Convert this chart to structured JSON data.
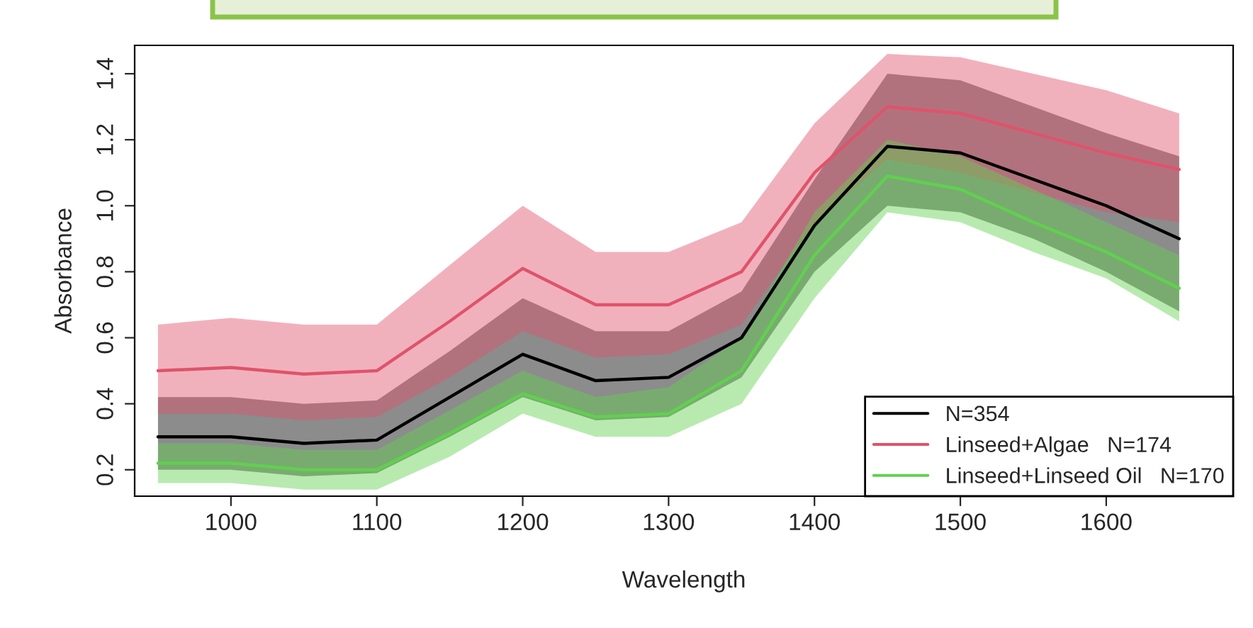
{
  "chart_data": {
    "type": "line",
    "xlabel": "Wavelength",
    "ylabel": "Absorbance",
    "x": [
      950,
      1000,
      1050,
      1100,
      1150,
      1200,
      1250,
      1300,
      1350,
      1400,
      1450,
      1500,
      1550,
      1600,
      1650
    ],
    "xlim": [
      934,
      1687
    ],
    "ylim": [
      0.12,
      1.486
    ],
    "xticks": [
      1000,
      1100,
      1200,
      1300,
      1400,
      1500,
      1600
    ],
    "yticks": [
      {
        "value": 0.2,
        "label": "0.2"
      },
      {
        "value": 0.4,
        "label": "0.4"
      },
      {
        "value": 0.6,
        "label": "0.6"
      },
      {
        "value": 0.8,
        "label": "0.8"
      },
      {
        "value": 1.0,
        "label": "1.0"
      },
      {
        "value": 1.2,
        "label": "1.2"
      },
      {
        "value": 1.4,
        "label": "1.4"
      }
    ],
    "series": [
      {
        "name": "N=354",
        "color": "#000000",
        "values": [
          0.3,
          0.3,
          0.28,
          0.29,
          0.42,
          0.55,
          0.47,
          0.48,
          0.6,
          0.94,
          1.18,
          1.16,
          1.08,
          1.0,
          0.9
        ],
        "lower": [
          0.2,
          0.2,
          0.18,
          0.19,
          0.3,
          0.42,
          0.35,
          0.36,
          0.48,
          0.8,
          1.0,
          0.98,
          0.9,
          0.8,
          0.68
        ],
        "upper": [
          0.42,
          0.42,
          0.4,
          0.41,
          0.56,
          0.72,
          0.62,
          0.62,
          0.74,
          1.08,
          1.4,
          1.38,
          1.3,
          1.22,
          1.15
        ]
      },
      {
        "name": "Linseed+Algae   N=174",
        "color": "#df536b",
        "values": [
          0.5,
          0.51,
          0.49,
          0.5,
          0.65,
          0.81,
          0.7,
          0.7,
          0.8,
          1.1,
          1.3,
          1.28,
          1.22,
          1.16,
          1.11
        ],
        "lower": [
          0.37,
          0.37,
          0.35,
          0.36,
          0.48,
          0.62,
          0.54,
          0.55,
          0.64,
          0.95,
          1.14,
          1.1,
          1.04,
          0.98,
          0.95
        ],
        "upper": [
          0.64,
          0.66,
          0.64,
          0.64,
          0.82,
          1.0,
          0.86,
          0.86,
          0.95,
          1.25,
          1.46,
          1.45,
          1.4,
          1.35,
          1.28
        ]
      },
      {
        "name": "Linseed+Linseed Oil   N=170",
        "color": "#61d04f",
        "values": [
          0.22,
          0.22,
          0.2,
          0.2,
          0.31,
          0.43,
          0.36,
          0.37,
          0.5,
          0.85,
          1.09,
          1.05,
          0.95,
          0.86,
          0.75
        ],
        "lower": [
          0.16,
          0.16,
          0.14,
          0.14,
          0.24,
          0.37,
          0.3,
          0.3,
          0.4,
          0.72,
          0.98,
          0.95,
          0.86,
          0.78,
          0.65
        ],
        "upper": [
          0.28,
          0.28,
          0.26,
          0.26,
          0.38,
          0.5,
          0.42,
          0.45,
          0.6,
          0.98,
          1.2,
          1.15,
          1.05,
          0.95,
          0.85
        ]
      }
    ],
    "legend": "bottom right",
    "grid": false,
    "line_style": "solid",
    "marker": "none"
  }
}
